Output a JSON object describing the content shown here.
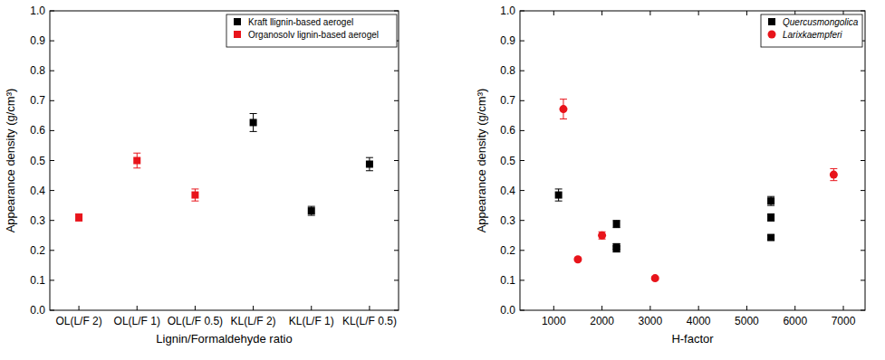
{
  "chart_data": [
    {
      "type": "scatter",
      "x_label": "Lignin/Formaldehyde ratio",
      "y_label": "Appearance density (g/cm³)",
      "categories": [
        "OL(L/F 2)",
        "OL(L/F 1)",
        "OL(L/F 0.5)",
        "KL(L/F 2)",
        "KL(L/F 1)",
        "KL(L/F 0.5)"
      ],
      "ylim": [
        0,
        1
      ],
      "yticks": [
        {
          "value": 0,
          "label": "0.0"
        },
        0.1,
        0.2,
        0.3,
        0.4,
        0.5,
        0.6,
        0.7,
        0.8,
        0.9,
        {
          "value": 1,
          "label": "1.0"
        }
      ],
      "legend": "upper right",
      "series": [
        {
          "name": "Kraft llignin-based aerogel",
          "color": "#000000",
          "marker": "square",
          "values": [
            null,
            null,
            null,
            0.627,
            0.332,
            0.488
          ],
          "errors": [
            null,
            null,
            null,
            0.03,
            0.015,
            0.022
          ]
        },
        {
          "name": "Organosolv lignin-based aerogel",
          "color": "#e8141b",
          "marker": "square",
          "values": [
            0.31,
            0.5,
            0.385,
            null,
            null,
            null
          ],
          "errors": [
            0.012,
            0.025,
            0.02,
            null,
            null,
            null
          ]
        }
      ]
    },
    {
      "type": "scatter",
      "x_label": "H-factor",
      "y_label": "Appearance density (g/cm³)",
      "xlim": [
        300,
        7450
      ],
      "xticks": [
        1000,
        2000,
        3000,
        4000,
        5000,
        6000,
        7000
      ],
      "ylim": [
        0,
        1
      ],
      "yticks": [
        {
          "value": 0,
          "label": "0.0"
        },
        0.1,
        0.2,
        0.3,
        0.4,
        0.5,
        0.6,
        0.7,
        0.8,
        0.9,
        {
          "value": 1,
          "label": "1.0"
        }
      ],
      "legend": "upper right",
      "series": [
        {
          "name": "Quercusmongolica",
          "color": "#000000",
          "marker": "square",
          "x": [
            1100,
            2300,
            2300,
            2300,
            5500,
            5500,
            5500
          ],
          "values": [
            0.385,
            0.288,
            0.212,
            0.205,
            0.365,
            0.31,
            0.243
          ],
          "errors": [
            0.02,
            0.012,
            0.01,
            0.01,
            0.015,
            0.012,
            0.008
          ]
        },
        {
          "name": "Larixkaempferi",
          "color": "#e8141b",
          "marker": "circle",
          "x": [
            1200,
            1500,
            2000,
            3100,
            6800
          ],
          "values": [
            0.672,
            0.17,
            0.25,
            0.107,
            0.453
          ],
          "errors": [
            0.033,
            0.005,
            0.012,
            0.005,
            0.02
          ]
        }
      ]
    }
  ]
}
